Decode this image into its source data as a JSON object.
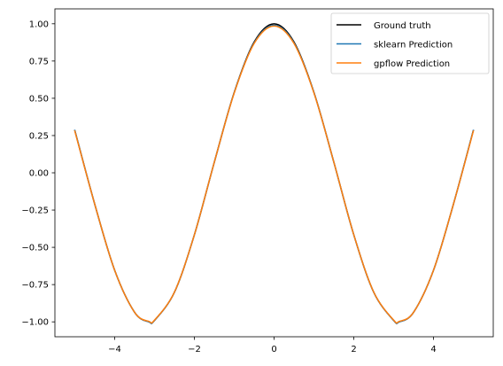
{
  "chart_data": {
    "type": "line",
    "title": "",
    "xlabel": "",
    "ylabel": "",
    "xlim": [
      -5.5,
      5.5
    ],
    "ylim": [
      -1.1,
      1.1
    ],
    "x_ticks": [
      -4,
      -2,
      0,
      2,
      4
    ],
    "x_tick_labels": [
      "−4",
      "−2",
      "0",
      "2",
      "4"
    ],
    "y_ticks": [
      -1.0,
      -0.75,
      -0.5,
      -0.25,
      0.0,
      0.25,
      0.5,
      0.75,
      1.0
    ],
    "y_tick_labels": [
      "−1.00",
      "−0.75",
      "−0.50",
      "−0.25",
      "0.00",
      "0.25",
      "0.50",
      "0.75",
      "1.00"
    ],
    "grid": false,
    "legend_position": "top-right",
    "x": [
      -5.0,
      -4.5,
      -4.0,
      -3.5,
      -3.14,
      -3.0,
      -2.5,
      -2.0,
      -1.5,
      -1.0,
      -0.5,
      0.0,
      0.5,
      1.0,
      1.5,
      2.0,
      2.5,
      3.0,
      3.14,
      3.5,
      4.0,
      4.5,
      5.0
    ],
    "series": [
      {
        "name": "Ground truth",
        "color": "#000000",
        "values": [
          0.284,
          -0.211,
          -0.654,
          -0.936,
          -1.0,
          -0.99,
          -0.801,
          -0.416,
          0.071,
          0.54,
          0.878,
          1.0,
          0.878,
          0.54,
          0.071,
          -0.416,
          -0.801,
          -0.99,
          -1.0,
          -0.936,
          -0.654,
          -0.211,
          0.284
        ]
      },
      {
        "name": "sklearn Prediction",
        "color": "#1f77b4",
        "values": [
          0.284,
          -0.211,
          -0.654,
          -0.936,
          -1.0,
          -0.99,
          -0.801,
          -0.416,
          0.071,
          0.538,
          0.872,
          0.99,
          0.872,
          0.538,
          0.071,
          -0.416,
          -0.801,
          -0.99,
          -1.0,
          -0.936,
          -0.654,
          -0.211,
          0.284
        ]
      },
      {
        "name": "gpflow Prediction",
        "color": "#ff7f0e",
        "values": [
          0.28,
          -0.211,
          -0.654,
          -0.936,
          -0.997,
          -0.988,
          -0.8,
          -0.416,
          0.071,
          0.536,
          0.868,
          0.985,
          0.868,
          0.536,
          0.071,
          -0.416,
          -0.8,
          -0.988,
          -0.997,
          -0.936,
          -0.654,
          -0.211,
          0.28
        ]
      }
    ]
  }
}
